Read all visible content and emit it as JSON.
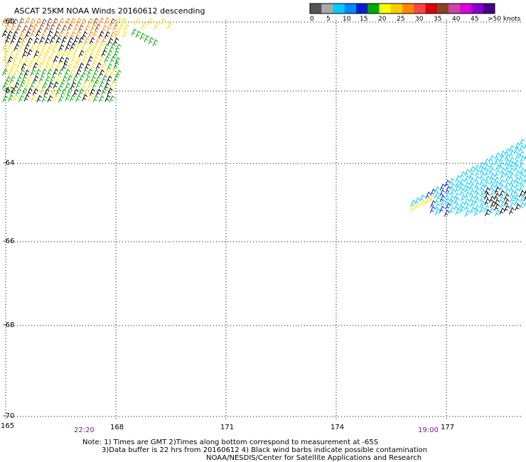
{
  "title": "ASCAT 25KM NOAA Winds 20160612 descending",
  "legend": {
    "labels": [
      "0",
      "5",
      "10",
      "15",
      "20",
      "25",
      "30",
      "35",
      "40",
      "45",
      ">50 knots"
    ],
    "colors": [
      "#555555",
      "#aaaaaa",
      "#00ccff",
      "#0088ff",
      "#0022cc",
      "#00aa00",
      "#ffff00",
      "#ffcc00",
      "#ff8800",
      "#ff4444",
      "#dd0000",
      "#884422",
      "#cc44aa",
      "#dd00dd",
      "#8800cc",
      "#440088"
    ]
  },
  "axes": {
    "lon_ticks": [
      "165",
      "168",
      "171",
      "174",
      "177"
    ],
    "lat_ticks": [
      "-60",
      "-62",
      "-64",
      "-66",
      "-68",
      "-70"
    ]
  },
  "times": [
    "22:20",
    "19:00"
  ],
  "notes": [
    "Note: 1) Times are GMT 2)Times along bottom correspond to measurement at -65S",
    "3)Data buffer is 22 hrs from 20160612 4) Black wind barbs indicate possible contamination",
    "NOAA/NESDIS/Center for Satellite Applications and Research"
  ],
  "colors": {
    "black": "#000000",
    "green": "#00aa00",
    "yellow": "#ffdd00",
    "orange": "#ff8800",
    "brown": "#884422",
    "cyan": "#00ccff",
    "blue": "#0022cc"
  }
}
